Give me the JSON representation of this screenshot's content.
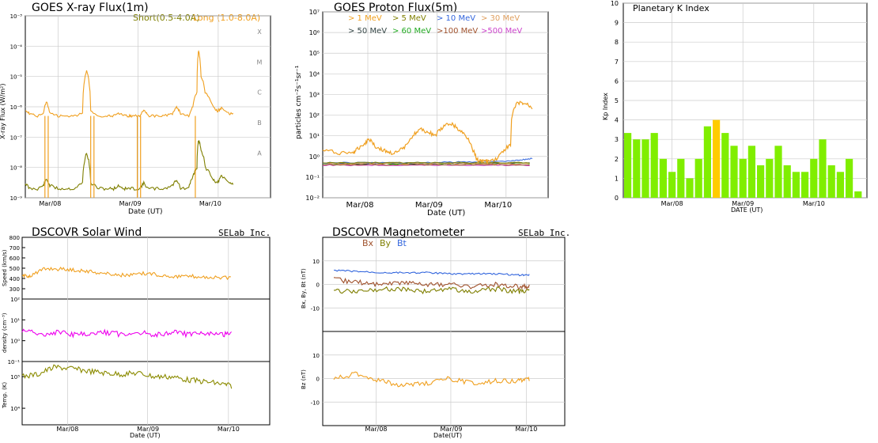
{
  "panels": {
    "xray": {
      "title": "GOES X-ray Flux(1m)",
      "legend_short": "Short(0.5-4.0A)",
      "legend_long": "Long (1.0-8.0A)",
      "ylabel": "X-ray Flux (W/m²)",
      "xlabel": "Date (UT)",
      "class_labels": [
        "X",
        "M",
        "C",
        "B",
        "A"
      ]
    },
    "proton": {
      "title": "GOES Proton Flux(5m)",
      "ylabel": "particles cm⁻²s⁻¹sr⁻¹",
      "xlabel": "Date (UT)",
      "legend": [
        ">  1 MeV",
        ">  5 MeV",
        "> 10 MeV",
        "> 30 MeV",
        "> 50 MeV",
        "> 60 MeV",
        ">100 MeV",
        ">500 MeV"
      ]
    },
    "kp": {
      "title": "Planetary K Index",
      "ylabel": "Kp Index",
      "xlabel": "DATE (UT)"
    },
    "wind": {
      "title": "DSCOVR Solar Wind",
      "brand": "SELab Inc.",
      "ylabel_speed": "Speed (km/s)",
      "ylabel_density": "density (cm⁻³)",
      "ylabel_temp": "Temp. (K)",
      "xlabel": "Date (UT)"
    },
    "mag": {
      "title": "DSCOVR Magnetometer",
      "brand": "SELab Inc.",
      "legend_bx": "Bx",
      "legend_by": "By",
      "legend_bt": "Bt",
      "ylabel_top": "Bx, By, Bt (nT)",
      "ylabel_bottom": "Bz (nT)",
      "xlabel": "Date(UT)"
    }
  },
  "colors": {
    "short": "#7f7f00",
    "long": "#f0a020",
    "kp_green": "#80ee00",
    "kp_yellow": "#ffcc00",
    "density": "#ee00ee",
    "temp": "#8b8b00",
    "bx": "#a0522d",
    "by": "#7f7f00",
    "bt": "#3366dd",
    "bz": "#f0a020",
    "grid": "#cccccc"
  },
  "chart_data": [
    {
      "type": "line",
      "title": "GOES X-ray Flux(1m)",
      "ylabel": "X-ray Flux (W/m²)",
      "xlabel": "Date (UT)",
      "y_scale": "log",
      "ylim": [
        1e-09,
        0.001
      ],
      "y_ticks": [
        "10⁻⁹",
        "10⁻⁸",
        "10⁻⁷",
        "10⁻⁶",
        "10⁻⁵",
        "10⁻⁴",
        "10⁻³"
      ],
      "x_ticks": [
        "Mar/08",
        "Mar/09",
        "Mar/10"
      ],
      "x_range_days": [
        0,
        3
      ],
      "series": [
        {
          "name": "Short(0.5-4.0A)",
          "x": [
            0,
            0.05,
            0.15,
            0.22,
            0.26,
            0.3,
            0.4,
            0.5,
            0.6,
            0.7,
            0.75,
            0.8,
            0.9,
            1.0,
            1.08,
            1.15,
            1.2,
            1.25,
            1.3,
            1.4,
            1.45,
            1.5,
            1.6,
            1.7,
            1.8,
            1.85,
            1.9,
            2.0,
            2.05,
            2.1,
            2.12,
            2.15,
            2.2,
            2.3,
            2.35,
            2.4,
            2.5,
            2.55
          ],
          "values": [
            3e-09,
            2e-09,
            2e-09,
            2.5e-09,
            4e-09,
            2.5e-09,
            2e-09,
            2e-09,
            2e-09,
            3e-09,
            3e-08,
            3e-09,
            2e-09,
            2e-09,
            2e-09,
            2.5e-09,
            2e-09,
            2e-09,
            2e-09,
            2e-09,
            3e-09,
            2e-09,
            2e-09,
            2e-09,
            2.5e-09,
            4e-09,
            2e-09,
            2e-09,
            5e-09,
            1e-08,
            8e-08,
            4e-08,
            1e-08,
            4e-09,
            3e-09,
            5e-09,
            3e-09,
            3e-09
          ]
        },
        {
          "name": "Long (1.0-8.0A)",
          "x": [
            0,
            0.05,
            0.15,
            0.22,
            0.26,
            0.3,
            0.4,
            0.5,
            0.6,
            0.7,
            0.75,
            0.8,
            0.9,
            1.0,
            1.08,
            1.15,
            1.2,
            1.25,
            1.3,
            1.4,
            1.45,
            1.5,
            1.6,
            1.7,
            1.8,
            1.85,
            1.9,
            2.0,
            2.05,
            2.1,
            2.12,
            2.15,
            2.2,
            2.3,
            2.35,
            2.4,
            2.5,
            2.55
          ],
          "values": [
            8e-07,
            6e-07,
            5e-07,
            6e-07,
            1.5e-06,
            6e-07,
            5e-07,
            5e-07,
            5e-07,
            6e-07,
            1.5e-05,
            7e-07,
            5e-07,
            5e-07,
            5e-07,
            6e-07,
            5e-07,
            5e-07,
            5e-07,
            5e-07,
            8e-07,
            5e-07,
            5e-07,
            5e-07,
            6e-07,
            1e-06,
            6e-07,
            5e-07,
            1e-06,
            3e-06,
            7e-05,
            1e-05,
            3e-06,
            1e-06,
            7e-07,
            9e-07,
            6e-07,
            6e-07
          ]
        }
      ]
    },
    {
      "type": "line",
      "title": "GOES Proton Flux(5m)",
      "ylabel": "particles cm⁻²s⁻¹sr⁻¹",
      "xlabel": "Date (UT)",
      "y_scale": "log",
      "ylim": [
        0.01,
        10000000
      ],
      "y_ticks": [
        "10⁻²",
        "10⁻¹",
        "10⁰",
        "10¹",
        "10²",
        "10³",
        "10⁴",
        "10⁵",
        "10⁶",
        "10⁷"
      ],
      "x_ticks": [
        "Mar/08",
        "Mar/09",
        "Mar/10"
      ],
      "x_range_days": [
        0,
        3
      ],
      "series": [
        {
          "name": ">  1 MeV",
          "x": [
            0,
            0.2,
            0.4,
            0.45,
            0.55,
            0.62,
            0.7,
            0.8,
            0.9,
            1.0,
            1.1,
            1.2,
            1.3,
            1.4,
            1.5,
            1.6,
            1.7,
            1.8,
            1.9,
            2.0,
            2.05,
            2.1,
            2.15,
            2.2,
            2.3,
            2.4,
            2.5,
            2.6,
            2.7,
            2.8
          ],
          "values": [
            2,
            1.5,
            1.5,
            2,
            4,
            7,
            3,
            2,
            1.5,
            1.5,
            3,
            10,
            20,
            15,
            10,
            25,
            40,
            20,
            10,
            2,
            0.7,
            0.6,
            0.6,
            0.6,
            0.7,
            1.5,
            4,
            400,
            350,
            200
          ]
        },
        {
          "name": ">  5 MeV",
          "x": [
            0,
            1.4,
            2.8
          ],
          "values": [
            0.5,
            0.5,
            0.5
          ]
        },
        {
          "name": "> 10 MeV",
          "x": [
            0,
            1.4,
            2.5,
            2.8
          ],
          "values": [
            0.5,
            0.5,
            0.6,
            0.8
          ]
        },
        {
          "name": "> 30 MeV",
          "x": [
            0,
            1.4,
            2.8
          ],
          "values": [
            0.45,
            0.45,
            0.45
          ]
        },
        {
          "name": "> 50 MeV",
          "x": [
            0,
            1.4,
            2.8
          ],
          "values": [
            0.45,
            0.45,
            0.5
          ]
        },
        {
          "name": "> 60 MeV",
          "x": [
            0,
            1.4,
            2.8
          ],
          "values": [
            0.45,
            0.45,
            0.45
          ]
        },
        {
          "name": ">100 MeV",
          "x": [
            0,
            1.4,
            2.8
          ],
          "values": [
            0.4,
            0.4,
            0.4
          ]
        },
        {
          "name": ">500 MeV",
          "x": [
            0,
            1.4,
            2.8
          ],
          "values": [
            0.38,
            0.38,
            0.38
          ]
        }
      ]
    },
    {
      "type": "bar",
      "title": "Planetary K Index",
      "ylabel": "Kp Index",
      "xlabel": "DATE (UT)",
      "ylim": [
        0,
        10
      ],
      "y_ticks": [
        0,
        1,
        2,
        3,
        4,
        5,
        6,
        7,
        8,
        9,
        10
      ],
      "x_ticks": [
        "Mar/08",
        "Mar/09",
        "Mar/10"
      ],
      "values": [
        3.33,
        3.0,
        3.0,
        3.33,
        2.0,
        1.33,
        2.0,
        1.0,
        2.0,
        3.67,
        4.0,
        3.33,
        2.67,
        2.0,
        2.67,
        1.67,
        2.0,
        2.67,
        1.67,
        1.33,
        1.33,
        2.0,
        3.0,
        1.67,
        1.33,
        2.0,
        0.33
      ],
      "bar_colors": [
        "g",
        "g",
        "g",
        "g",
        "g",
        "g",
        "g",
        "g",
        "g",
        "g",
        "y",
        "g",
        "g",
        "g",
        "g",
        "g",
        "g",
        "g",
        "g",
        "g",
        "g",
        "g",
        "g",
        "g",
        "g",
        "g",
        "g"
      ]
    },
    {
      "type": "line",
      "title": "DSCOVR Solar Wind",
      "xlabel": "Date (UT)",
      "x_ticks": [
        "Mar/08",
        "Mar/09",
        "Mar/10"
      ],
      "x_range_days": [
        0,
        3
      ],
      "subplots": [
        {
          "ylabel": "Speed (km/s)",
          "ylim": [
            200,
            800
          ],
          "y_ticks": [
            300,
            400,
            500,
            600,
            700,
            800
          ],
          "series": [
            {
              "x": [
                0,
                0.1,
                0.3,
                0.5,
                0.7,
                0.9,
                1.1,
                1.3,
                1.5,
                1.7,
                1.9,
                2.1,
                2.3,
                2.55
              ],
              "values": [
                420,
                430,
                500,
                490,
                480,
                460,
                440,
                430,
                450,
                430,
                420,
                420,
                410,
                400
              ]
            }
          ]
        },
        {
          "ylabel": "density (cm⁻³)",
          "y_scale": "log",
          "ylim": [
            0.1,
            100
          ],
          "y_ticks": [
            "10⁻¹",
            "10⁰",
            "10¹",
            "10²"
          ],
          "series": [
            {
              "x": [
                0,
                0.2,
                0.4,
                0.6,
                0.8,
                1.0,
                1.2,
                1.4,
                1.6,
                1.8,
                2.0,
                2.2,
                2.4,
                2.55
              ],
              "values": [
                3,
                2,
                2.5,
                2,
                2,
                2.5,
                2,
                2.5,
                2,
                2.5,
                2,
                2,
                2,
                2
              ]
            }
          ]
        },
        {
          "ylabel": "Temp. (K)",
          "y_scale": "log",
          "ylim": [
            3000,
            300000
          ],
          "y_ticks": [
            "10⁴",
            "10⁵"
          ],
          "series": [
            {
              "x": [
                0,
                0.2,
                0.4,
                0.6,
                0.8,
                1.0,
                1.2,
                1.4,
                1.6,
                1.8,
                2.0,
                2.2,
                2.4,
                2.55
              ],
              "values": [
                100000,
                120000,
                200000,
                180000,
                150000,
                130000,
                120000,
                130000,
                100000,
                100000,
                80000,
                70000,
                60000,
                50000
              ]
            }
          ]
        }
      ]
    },
    {
      "type": "line",
      "title": "DSCOVR Magnetometer",
      "xlabel": "Date(UT)",
      "x_ticks": [
        "Mar/08",
        "Mar/09",
        "Mar/10"
      ],
      "x_range_days": [
        0,
        3
      ],
      "subplots": [
        {
          "ylabel": "Bx, By, Bt (nT)",
          "ylim": [
            -20,
            20
          ],
          "y_ticks": [
            -10,
            0,
            10
          ],
          "series": [
            {
              "name": "Bx",
              "x": [
                0,
                0.3,
                0.6,
                0.9,
                1.2,
                1.5,
                1.8,
                2.1,
                2.4,
                2.55
              ],
              "values": [
                2,
                1,
                0,
                1,
                0,
                0,
                -1,
                0,
                -1,
                -1
              ]
            },
            {
              "name": "By",
              "x": [
                0,
                0.3,
                0.6,
                0.9,
                1.2,
                1.5,
                1.8,
                2.1,
                2.4,
                2.55
              ],
              "values": [
                -3,
                -3,
                -2,
                -2,
                -3,
                -2,
                -3,
                -2,
                -3,
                -3
              ]
            },
            {
              "name": "Bt",
              "x": [
                0,
                0.3,
                0.6,
                0.9,
                1.2,
                1.5,
                1.8,
                2.1,
                2.4,
                2.55
              ],
              "values": [
                6,
                5.5,
                5,
                5,
                5,
                4.5,
                4.5,
                4.5,
                4,
                4
              ]
            }
          ]
        },
        {
          "ylabel": "Bz (nT)",
          "ylim": [
            -20,
            20
          ],
          "y_ticks": [
            -10,
            0,
            10
          ],
          "series": [
            {
              "name": "Bz",
              "x": [
                0,
                0.3,
                0.6,
                0.9,
                1.2,
                1.5,
                1.8,
                2.1,
                2.4,
                2.55
              ],
              "values": [
                0,
                2,
                -1,
                -3,
                -2,
                0,
                -2,
                -1,
                -1,
                0
              ]
            }
          ]
        }
      ]
    }
  ]
}
